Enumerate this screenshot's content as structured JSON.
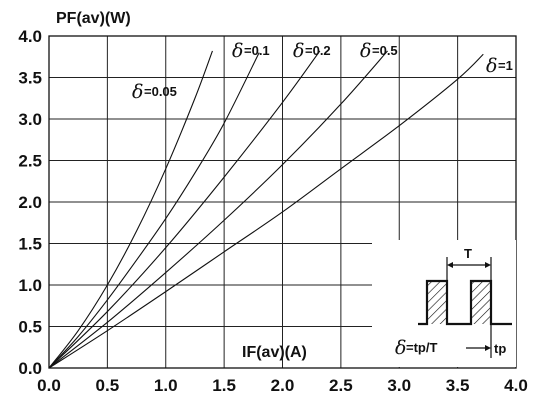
{
  "chart_data": {
    "type": "line",
    "title": "",
    "ylabel": "PF(av)(W)",
    "xlabel": "IF(av)(A)",
    "xlim": [
      0,
      4.0
    ],
    "ylim": [
      0,
      4.0
    ],
    "xticks": [
      "0.0",
      "0.5",
      "1.0",
      "1.5",
      "2.0",
      "2.5",
      "3.0",
      "3.5",
      "4.0"
    ],
    "yticks": [
      "0.0",
      "0.5",
      "1.0",
      "1.5",
      "2.0",
      "2.5",
      "3.0",
      "3.5",
      "4.0"
    ],
    "grid": true,
    "delta_symbol": "δ",
    "series": [
      {
        "name": "δ=0.05",
        "value_label": "=0.05",
        "x": [
          0,
          0.25,
          0.5,
          0.75,
          1.0,
          1.25,
          1.4
        ],
        "y": [
          0,
          0.45,
          1.0,
          1.65,
          2.4,
          3.25,
          3.82
        ]
      },
      {
        "name": "δ=0.1",
        "value_label": "=0.1",
        "x": [
          0,
          0.25,
          0.5,
          0.75,
          1.0,
          1.25,
          1.5,
          1.8
        ],
        "y": [
          0,
          0.38,
          0.82,
          1.3,
          1.8,
          2.35,
          2.95,
          3.8
        ]
      },
      {
        "name": "δ=0.2",
        "value_label": "=0.2",
        "x": [
          0,
          0.5,
          1.0,
          1.5,
          2.0,
          2.32
        ],
        "y": [
          0,
          0.68,
          1.45,
          2.3,
          3.2,
          3.82
        ]
      },
      {
        "name": "δ=0.5",
        "value_label": "=0.5",
        "x": [
          0,
          0.5,
          1.0,
          1.5,
          2.0,
          2.5,
          2.9
        ],
        "y": [
          0,
          0.55,
          1.15,
          1.78,
          2.45,
          3.18,
          3.82
        ]
      },
      {
        "name": "δ=1",
        "value_label": "=1",
        "x": [
          0,
          0.5,
          1.0,
          1.5,
          2.0,
          2.5,
          3.0,
          3.5,
          3.72
        ],
        "y": [
          0,
          0.45,
          0.92,
          1.4,
          1.88,
          2.4,
          2.92,
          3.48,
          3.78
        ]
      }
    ],
    "inset": {
      "period_label": "T",
      "pulse_label": "tp",
      "formula_label": "=tp/T"
    }
  }
}
